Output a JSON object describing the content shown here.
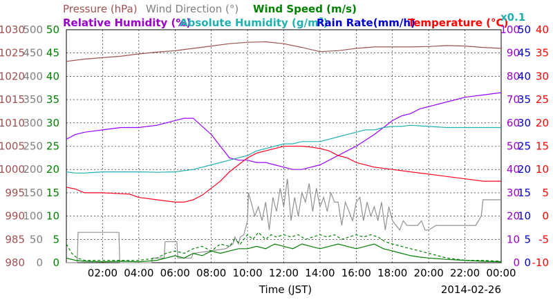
{
  "chart_data": {
    "type": "line",
    "date_label": "2014-02-26",
    "xlabel": "Time (JST)",
    "x_ticks": [
      "02:00",
      "04:00",
      "06:00",
      "08:00",
      "10:00",
      "12:00",
      "14:00",
      "16:00",
      "18:00",
      "20:00",
      "22:00",
      "00:00"
    ],
    "titles": {
      "pressure": "Pressure (hPa)",
      "wind_direction": "Wind Direction (°)",
      "wind_speed": "Wind Speed (m/s)",
      "relative_humidity": "Relative Humidity (%)",
      "absolute_humidity": "Absolute Humidity (g/m",
      "absolute_humidity_sup": "3",
      "absolute_humidity_close": ")",
      "rain_rate": "Rain Rate(mm/h)",
      "temperature": "Temperature (°C)",
      "scale_note": "x0.1"
    },
    "axes": {
      "pressure": {
        "ticks": [
          "980",
          "985",
          "990",
          "995",
          "1000",
          "1005",
          "1010",
          "1015",
          "1020",
          "1025",
          "1030"
        ],
        "color": "#a05050"
      },
      "wind_direction": {
        "ticks": [
          "0",
          "50",
          "100",
          "150",
          "200",
          "250",
          "300",
          "350",
          "400",
          "450",
          "500"
        ],
        "color": "#808080"
      },
      "wind_speed": {
        "ticks": [
          "0",
          "5",
          "10",
          "15",
          "20",
          "25",
          "30",
          "35",
          "40",
          "45",
          "50"
        ],
        "color": "#008000"
      },
      "relative_humidity": {
        "ticks": [
          "0",
          "10",
          "20",
          "30",
          "40",
          "50",
          "60",
          "70",
          "80",
          "90",
          "100"
        ],
        "color": "#9a00cc"
      },
      "rain_rate": {
        "ticks": [
          "0",
          "5",
          "10",
          "15",
          "20",
          "25",
          "30",
          "35",
          "40",
          "45",
          "50"
        ],
        "color": "#0000cc"
      },
      "temperature": {
        "ticks": [
          "-10",
          "-5",
          "0",
          "5",
          "10",
          "15",
          "20",
          "25",
          "30",
          "35",
          "40"
        ],
        "color": "#ff0000"
      }
    },
    "colors": {
      "pressure": "#a05050",
      "wind_direction": "#909090",
      "wind_speed": "#008000",
      "relative_humidity": "#9a00ff",
      "absolute_humidity": "#20b0b0",
      "rain_rate": "#0000cc",
      "temperature": "#ff0020"
    },
    "grid": true,
    "series": [
      {
        "name": "Pressure (hPa)",
        "key": "pressure",
        "axis": "pressure",
        "x": [
          0,
          1,
          2,
          3,
          4,
          5,
          6,
          7,
          8,
          9,
          10,
          11,
          12,
          13,
          14,
          15,
          16,
          17,
          18,
          19,
          20,
          21,
          22,
          23,
          24
        ],
        "y": [
          1023.2,
          1023.7,
          1024.0,
          1024.3,
          1024.8,
          1025.2,
          1025.5,
          1026.0,
          1026.5,
          1027.0,
          1027.3,
          1027.4,
          1027.0,
          1026.2,
          1025.3,
          1025.5,
          1026.0,
          1026.3,
          1026.3,
          1026.3,
          1026.4,
          1026.6,
          1026.5,
          1026.2,
          1026.0
        ]
      },
      {
        "name": "Relative Humidity (%)",
        "key": "relative_humidity",
        "axis": "relative_humidity",
        "x": [
          0,
          0.5,
          1,
          2,
          3,
          4,
          5,
          5.5,
          6,
          6.5,
          7,
          8,
          8.5,
          9,
          9.5,
          10,
          10.5,
          11,
          11.5,
          12,
          12.5,
          13,
          13.5,
          14,
          15,
          15.5,
          16,
          17,
          17.5,
          18,
          18.5,
          19,
          19.5,
          20,
          21,
          22,
          23,
          24
        ],
        "y": [
          53,
          55,
          56,
          57,
          58,
          58,
          59,
          60,
          61,
          62,
          62,
          55,
          50,
          45,
          44,
          44,
          43,
          43,
          42,
          41,
          40,
          40,
          41,
          42,
          46,
          48,
          50,
          55,
          58,
          61,
          63,
          64,
          66,
          67,
          69,
          71,
          72,
          73
        ]
      },
      {
        "name": "Absolute Humidity",
        "key": "absolute_humidity",
        "axis": "relative_humidity",
        "x": [
          0,
          0.5,
          1,
          2,
          3,
          4,
          5,
          6,
          7,
          7.5,
          8,
          8.5,
          9,
          9.5,
          10,
          10.5,
          11,
          11.5,
          12,
          12.5,
          13,
          13.5,
          14,
          14.5,
          15,
          15.5,
          16,
          16.5,
          17,
          17.5,
          18,
          18.5,
          19,
          20,
          21,
          22,
          23,
          24
        ],
        "y": [
          39,
          38.5,
          38.5,
          39,
          39,
          39,
          38.8,
          39,
          40,
          41,
          42,
          43,
          44,
          45,
          46,
          48,
          49,
          50,
          51,
          51,
          52,
          52,
          52,
          53,
          54,
          55,
          56,
          57,
          57,
          58,
          58.5,
          58.5,
          59,
          58.5,
          58,
          58,
          58,
          58
        ]
      },
      {
        "name": "Temperature (°C)",
        "key": "temperature",
        "axis": "temperature",
        "x": [
          0,
          0.5,
          1,
          2,
          3,
          3.5,
          4,
          5,
          6,
          6.5,
          7,
          7.5,
          8,
          8.5,
          9,
          9.5,
          10,
          10.5,
          11,
          11.5,
          12,
          12.5,
          13,
          13.5,
          14,
          14.5,
          15,
          15.5,
          16,
          17,
          18,
          19,
          20,
          21,
          22,
          23,
          24
        ],
        "y": [
          6.2,
          5.8,
          5,
          5,
          4.8,
          4.7,
          4,
          3.5,
          3,
          3,
          3.5,
          4.5,
          6,
          7.5,
          9.5,
          11,
          12.5,
          13.5,
          14,
          14.5,
          15,
          15,
          15,
          14.8,
          14.5,
          14,
          13,
          12.5,
          11.5,
          10.5,
          10,
          9.5,
          9,
          8.5,
          8,
          7.5,
          7.5
        ]
      },
      {
        "name": "Wind Direction (°)",
        "key": "wind_direction",
        "axis": "wind_direction",
        "x": [
          0,
          0.6,
          0.65,
          2.9,
          2.95,
          4.7,
          4.75,
          5.4,
          5.45,
          6.1,
          6.15,
          6.9,
          7.0,
          8.8,
          9.2,
          9.3,
          9.5,
          9.6,
          9.8,
          10.0,
          10.05,
          10.2,
          10.4,
          10.6,
          10.8,
          11.0,
          11.2,
          11.4,
          11.6,
          11.8,
          12.0,
          12.2,
          12.4,
          12.6,
          12.8,
          13.0,
          13.2,
          13.4,
          13.6,
          13.8,
          14.0,
          14.2,
          14.4,
          14.6,
          14.8,
          15.0,
          15.2,
          15.4,
          15.6,
          15.8,
          16.0,
          16.2,
          16.4,
          16.6,
          16.8,
          17.0,
          17.2,
          17.4,
          17.6,
          17.8,
          18.0,
          18.2,
          18.4,
          18.6,
          18.8,
          19.0,
          19.4,
          19.6,
          19.8,
          20.0,
          20.4,
          21.0,
          21.4,
          22.0,
          22.6,
          22.9,
          23.0,
          24.0
        ],
        "y": [
          0,
          0,
          65,
          65,
          0,
          0,
          10,
          10,
          45,
          45,
          10,
          10,
          20,
          30,
          40,
          55,
          40,
          55,
          60,
          90,
          150,
          130,
          100,
          120,
          90,
          130,
          70,
          140,
          110,
          160,
          120,
          180,
          90,
          140,
          100,
          150,
          130,
          170,
          110,
          160,
          120,
          140,
          110,
          150,
          130,
          130,
          80,
          130,
          110,
          90,
          130,
          140,
          90,
          130,
          100,
          120,
          90,
          130,
          70,
          120,
          90,
          80,
          70,
          90,
          80,
          80,
          80,
          90,
          70,
          70,
          80,
          80,
          80,
          80,
          80,
          100,
          135,
          135
        ]
      },
      {
        "name": "Wind Speed (m/s)",
        "key": "wind_speed",
        "axis": "wind_speed",
        "dash": "4,3",
        "x": [
          0,
          0.3,
          0.6,
          1.0,
          2.0,
          3.0,
          4.0,
          5.0,
          5.5,
          6.0,
          6.5,
          7.0,
          7.5,
          8.0,
          8.5,
          9.0,
          9.3,
          9.6,
          10.0,
          10.3,
          10.6,
          11.0,
          11.3,
          11.6,
          12.0,
          12.4,
          12.8,
          13.2,
          13.6,
          14.0,
          14.4,
          14.8,
          15.2,
          15.6,
          16.0,
          16.4,
          16.8,
          17.2,
          17.6,
          18.0,
          18.5,
          19.0,
          19.5,
          20.0,
          20.5,
          21.0,
          22.0,
          23.0,
          24.0
        ],
        "y": [
          4,
          2,
          1,
          0.5,
          0.5,
          0.5,
          0.5,
          1,
          2,
          2.5,
          2,
          3,
          3.5,
          2.5,
          4,
          3.5,
          5,
          4,
          6,
          5,
          6.5,
          5,
          6,
          5.5,
          6,
          5.5,
          6,
          5,
          5.5,
          6,
          5.5,
          6,
          5,
          5.5,
          6,
          5.5,
          6,
          5.5,
          4.5,
          4,
          3.5,
          3,
          2.5,
          2,
          1.5,
          1,
          0.5,
          0.5,
          0.3
        ]
      },
      {
        "name": "Wind Speed (m/s) mean",
        "key": "wind_speed",
        "axis": "wind_speed",
        "x": [
          0,
          0.5,
          1,
          2,
          3,
          4,
          5,
          5.5,
          6,
          6.5,
          7,
          7.5,
          8,
          8.5,
          9,
          9.5,
          10,
          10.5,
          11,
          11.5,
          12,
          12.5,
          13,
          13.5,
          14,
          14.5,
          15,
          15.5,
          16,
          16.5,
          17,
          17.5,
          18,
          18.5,
          19,
          19.5,
          20,
          21,
          22,
          23,
          24
        ],
        "y": [
          1,
          0.5,
          0.3,
          0.2,
          0.3,
          0.2,
          0.5,
          1,
          1.5,
          1,
          2,
          1.5,
          2.5,
          2,
          2.5,
          3,
          3,
          3.5,
          3,
          4,
          3.5,
          3,
          4,
          3.5,
          3,
          3.5,
          4,
          3.5,
          3,
          3.5,
          4,
          3,
          2.5,
          2,
          1.5,
          1.2,
          1,
          0.7,
          0.5,
          0.3,
          0.2
        ]
      }
    ]
  }
}
